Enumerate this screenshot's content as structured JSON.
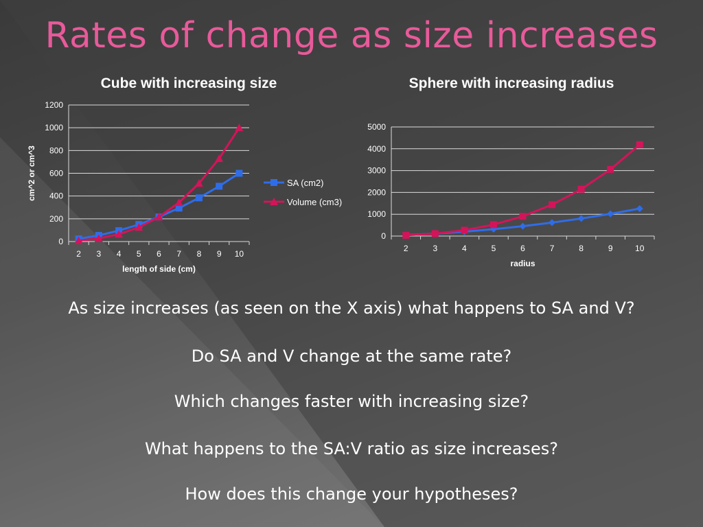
{
  "title": "Rates of change as size increases",
  "colors": {
    "sa": "#2f6de8",
    "volume": "#d4145a",
    "title": "#e85a9a"
  },
  "questions": [
    "As size increases (as seen on the X axis) what happens to SA and V?",
    "Do SA and V change at the same rate?",
    "Which changes faster with increasing size?",
    "What happens to the SA:V ratio as size increases?",
    "How does this change your hypotheses?"
  ],
  "chart_data": [
    {
      "type": "line",
      "title": "Cube with increasing size",
      "xlabel": "length of side (cm)",
      "ylabel": "cm^2 or cm^3",
      "categories": [
        "2",
        "3",
        "4",
        "5",
        "6",
        "7",
        "8",
        "9",
        "10"
      ],
      "ylim": [
        0,
        1200
      ],
      "yticks": [
        0,
        200,
        400,
        600,
        800,
        1000,
        1200
      ],
      "grid": true,
      "legend": "right",
      "series": [
        {
          "name": "SA (cm2)",
          "values": [
            24,
            54,
            96,
            150,
            216,
            294,
            384,
            486,
            600
          ],
          "marker": "square"
        },
        {
          "name": "Volume (cm3)",
          "values": [
            8,
            27,
            64,
            125,
            216,
            343,
            512,
            729,
            1000
          ],
          "marker": "triangle"
        }
      ]
    },
    {
      "type": "line",
      "title": "Sphere with increasing radius",
      "xlabel": "radius",
      "ylabel": "",
      "categories": [
        "2",
        "3",
        "4",
        "5",
        "6",
        "7",
        "8",
        "9",
        "10"
      ],
      "ylim": [
        0,
        5000
      ],
      "yticks": [
        0,
        1000,
        2000,
        3000,
        4000,
        5000
      ],
      "grid": true,
      "legend": "none",
      "series": [
        {
          "values": [
            50,
            113,
            201,
            314,
            452,
            616,
            804,
            1018,
            1257
          ],
          "marker": "diamond"
        },
        {
          "values": [
            34,
            113,
            268,
            524,
            905,
            1437,
            2145,
            3054,
            4189
          ],
          "marker": "square"
        }
      ]
    }
  ]
}
